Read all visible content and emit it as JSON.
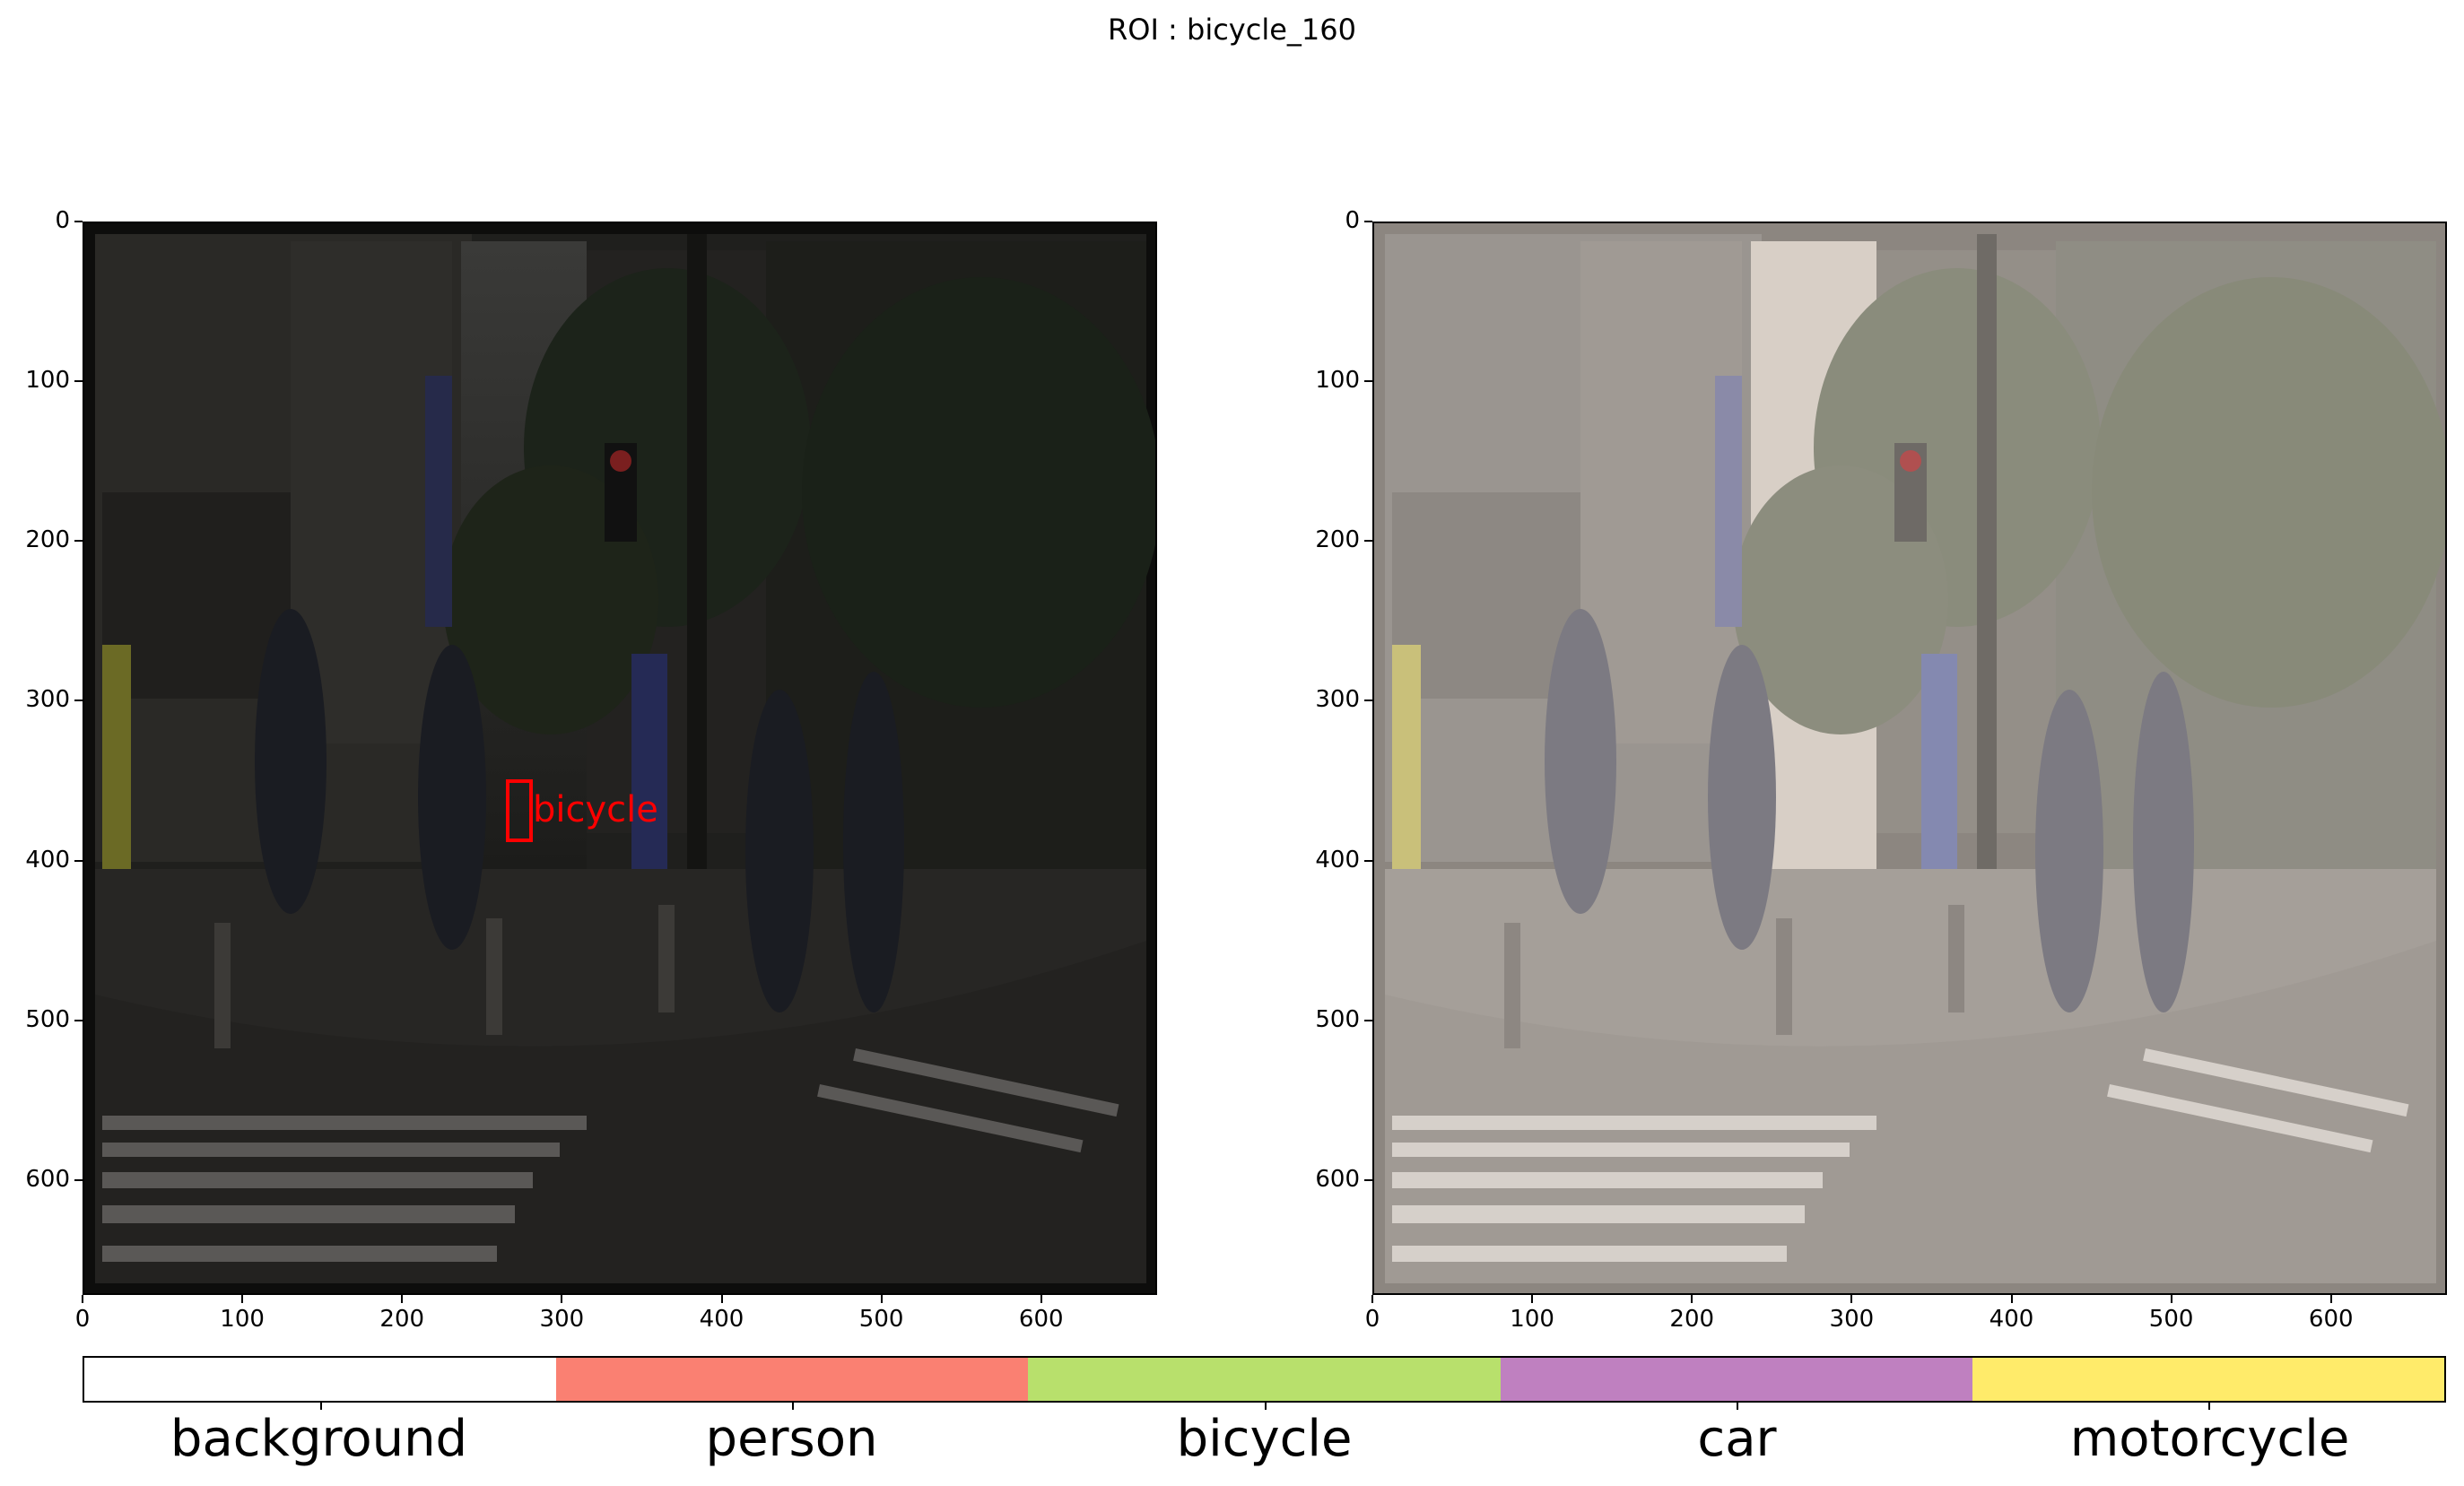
{
  "figure": {
    "title": "ROI : bicycle_160"
  },
  "left_panel": {
    "annotation_label": "bicycle",
    "annotation_color": "#ff0000",
    "y_ticks": [
      "0",
      "100",
      "200",
      "300",
      "400",
      "500",
      "600"
    ],
    "x_ticks": [
      "0",
      "100",
      "200",
      "300",
      "400",
      "500",
      "600"
    ]
  },
  "right_panel": {
    "y_ticks": [
      "0",
      "100",
      "200",
      "300",
      "400",
      "500",
      "600"
    ],
    "x_ticks": [
      "0",
      "100",
      "200",
      "300",
      "400",
      "500",
      "600"
    ]
  },
  "colorbar": {
    "classes": [
      {
        "label": "background",
        "color": "#ffffff"
      },
      {
        "label": "person",
        "color": "#fa8072"
      },
      {
        "label": "bicycle",
        "color": "#b8e06c"
      },
      {
        "label": "car",
        "color": "#bf80c0"
      },
      {
        "label": "motorcycle",
        "color": "#ffeb6a"
      }
    ]
  }
}
